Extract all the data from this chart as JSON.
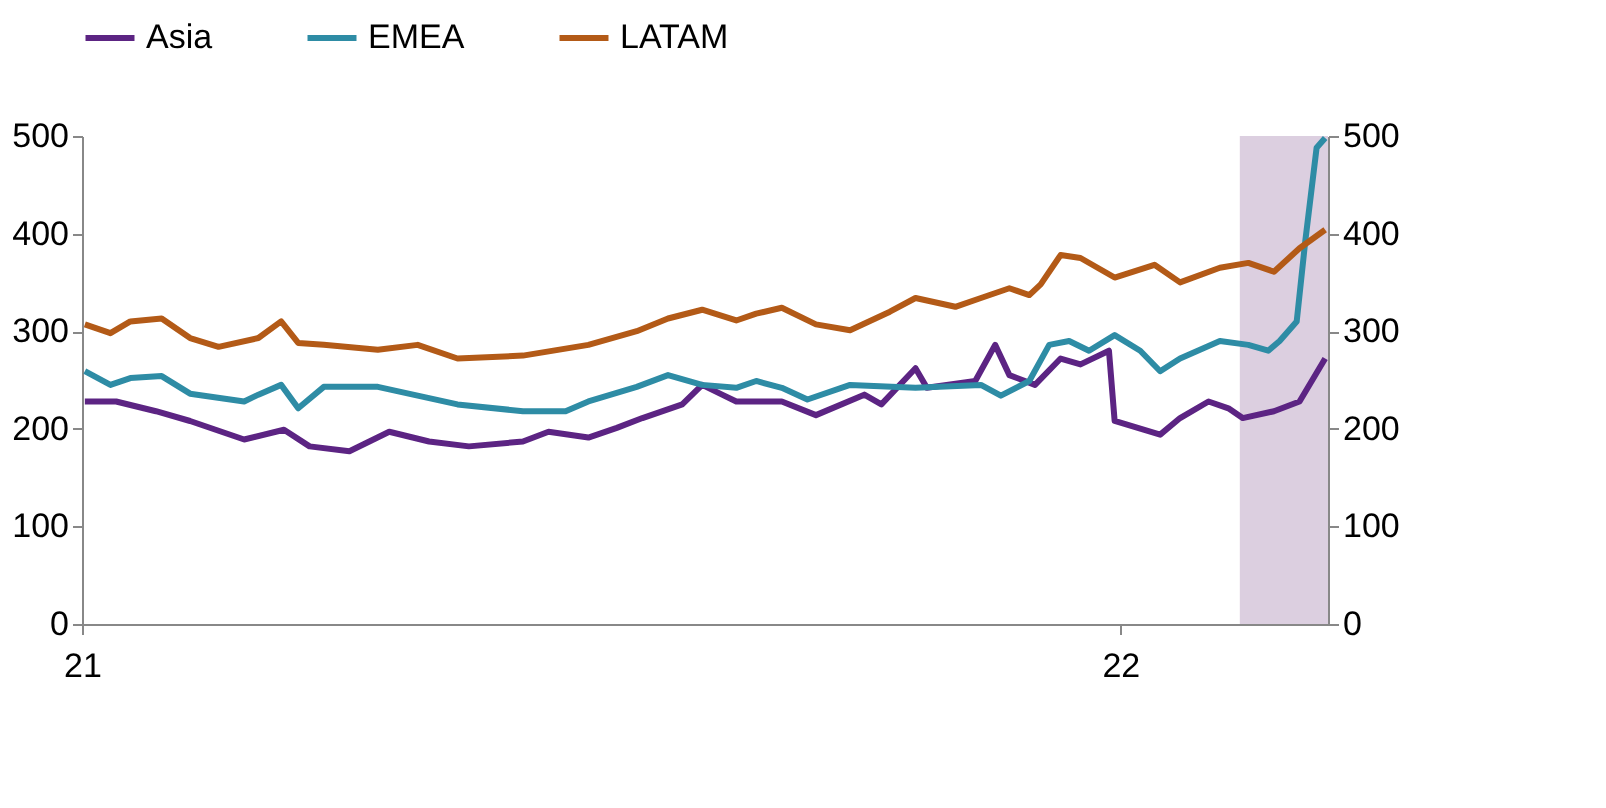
{
  "chart_data": {
    "type": "line",
    "xlim": [
      "2021-01-01",
      "2022-03-15"
    ],
    "xticks": [
      {
        "value": "2021-01-01",
        "label": "21"
      },
      {
        "value": "2022-01-01",
        "label": "22"
      }
    ],
    "ylim": [
      0,
      500
    ],
    "yticks": [
      0,
      100,
      200,
      300,
      400,
      500
    ],
    "y2lim": [
      0,
      500
    ],
    "y2ticks": [
      0,
      100,
      200,
      300,
      400,
      500
    ],
    "grid": false,
    "legend": "top",
    "line_style": "solid",
    "marker": "none",
    "bands": [
      {
        "axis": "x",
        "from": "2022-02-12",
        "to": "2022-03-15",
        "color": "#dccfe0"
      }
    ],
    "series": [
      {
        "name": "Asia",
        "color": "#5c2483",
        "x": [
          "2021-01-02",
          "2021-01-13",
          "2021-01-27",
          "2021-02-08",
          "2021-02-27",
          "2021-03-13",
          "2021-03-22",
          "2021-04-05",
          "2021-04-19",
          "2021-05-03",
          "2021-05-17",
          "2021-06-05",
          "2021-06-14",
          "2021-06-28",
          "2021-07-08",
          "2021-07-17",
          "2021-07-31",
          "2021-08-07",
          "2021-08-14",
          "2021-08-19",
          "2021-08-26",
          "2021-09-04",
          "2021-09-16",
          "2021-10-03",
          "2021-10-09",
          "2021-10-21",
          "2021-10-25",
          "2021-11-11",
          "2021-11-18",
          "2021-11-23",
          "2021-12-02",
          "2021-12-11",
          "2021-12-18",
          "2021-12-28",
          "2021-12-30",
          "2022-01-15",
          "2022-01-22",
          "2022-02-01",
          "2022-02-08",
          "2022-02-13",
          "2022-02-24",
          "2022-03-05",
          "2022-03-14"
        ],
        "values": [
          228,
          228,
          218,
          208,
          189,
          199,
          182,
          177,
          197,
          187,
          182,
          187,
          197,
          191,
          201,
          211,
          225,
          245,
          235,
          228,
          228,
          228,
          214,
          235,
          225,
          262,
          242,
          249,
          286,
          255,
          245,
          272,
          266,
          280,
          208,
          194,
          211,
          228,
          221,
          211,
          218,
          228,
          272
        ]
      },
      {
        "name": "EMEA",
        "color": "#2e8ca5",
        "x": [
          "2021-01-02",
          "2021-01-11",
          "2021-01-18",
          "2021-01-29",
          "2021-02-08",
          "2021-02-27",
          "2021-03-04",
          "2021-03-12",
          "2021-03-18",
          "2021-03-27",
          "2021-04-15",
          "2021-04-29",
          "2021-05-13",
          "2021-06-05",
          "2021-06-20",
          "2021-06-28",
          "2021-07-15",
          "2021-07-26",
          "2021-08-07",
          "2021-08-19",
          "2021-08-26",
          "2021-09-04",
          "2021-09-13",
          "2021-09-28",
          "2021-10-21",
          "2021-11-13",
          "2021-11-20",
          "2021-11-30",
          "2021-12-07",
          "2021-12-14",
          "2021-12-21",
          "2021-12-30",
          "2022-01-08",
          "2022-01-15",
          "2022-01-22",
          "2022-02-05",
          "2022-02-15",
          "2022-02-22",
          "2022-02-26",
          "2022-03-04",
          "2022-03-07",
          "2022-03-11",
          "2022-03-14"
        ],
        "values": [
          259,
          245,
          252,
          254,
          236,
          228,
          235,
          245,
          221,
          243,
          243,
          234,
          225,
          218,
          218,
          228,
          243,
          255,
          245,
          242,
          249,
          242,
          230,
          245,
          242,
          245,
          234,
          249,
          286,
          290,
          280,
          296,
          280,
          259,
          272,
          290,
          286,
          280,
          290,
          310,
          392,
          488,
          498
        ]
      },
      {
        "name": "LATAM",
        "color": "#b35a17",
        "x": [
          "2021-01-02",
          "2021-01-11",
          "2021-01-18",
          "2021-01-29",
          "2021-02-08",
          "2021-02-18",
          "2021-03-04",
          "2021-03-12",
          "2021-03-18",
          "2021-03-27",
          "2021-04-15",
          "2021-04-29",
          "2021-05-13",
          "2021-06-05",
          "2021-06-28",
          "2021-07-15",
          "2021-07-26",
          "2021-08-07",
          "2021-08-19",
          "2021-08-26",
          "2021-09-04",
          "2021-09-16",
          "2021-09-28",
          "2021-10-12",
          "2021-10-21",
          "2021-11-04",
          "2021-11-13",
          "2021-11-23",
          "2021-11-30",
          "2021-12-04",
          "2021-12-11",
          "2021-12-18",
          "2021-12-30",
          "2022-01-13",
          "2022-01-22",
          "2022-02-05",
          "2022-02-15",
          "2022-02-24",
          "2022-03-05",
          "2022-03-14"
        ],
        "values": [
          307,
          298,
          310,
          313,
          293,
          284,
          293,
          310,
          288,
          286,
          281,
          286,
          272,
          275,
          286,
          300,
          313,
          322,
          311,
          318,
          324,
          307,
          301,
          320,
          334,
          325,
          334,
          344,
          337,
          348,
          378,
          375,
          355,
          368,
          350,
          365,
          370,
          361,
          385,
          404
        ]
      }
    ]
  }
}
